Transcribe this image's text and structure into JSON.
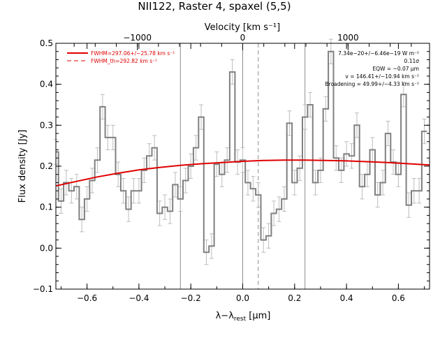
{
  "chart_data": {
    "type": "line",
    "title": "NII122, Raster 4, spaxel (5,5)",
    "xlabel": "λ−λrest [μm]",
    "xlabel_main": "λ−λ",
    "xlabel_sub": "rest",
    "xlabel_unit": " [μm]",
    "ylabel": "Flux density [Jy]",
    "top_axis_label": "Velocity [km s⁻¹]",
    "xlim": [
      -0.72,
      0.72
    ],
    "ylim": [
      -0.1,
      0.5
    ],
    "x_ticks": [
      -0.6,
      -0.4,
      -0.2,
      0.0,
      0.2,
      0.4,
      0.6
    ],
    "x_tick_labels": [
      "−0.6",
      "−0.4",
      "−0.2",
      "0.0",
      "0.2",
      "0.4",
      "0.6"
    ],
    "y_ticks": [
      -0.1,
      0.0,
      0.1,
      0.2,
      0.3,
      0.4,
      0.5
    ],
    "y_tick_labels": [
      "−0.1",
      "0.0",
      "0.1",
      "0.2",
      "0.3",
      "0.4",
      "0.5"
    ],
    "top_ticks_velocity": [
      -1000,
      0,
      1000
    ],
    "top_tick_labels": [
      "−1000",
      "0",
      "1000"
    ],
    "top_axis_micron_per_kms": 0.000406,
    "vertical_lines": [
      {
        "x": -0.24,
        "style": "solid"
      },
      {
        "x": 0.0,
        "style": "solid"
      },
      {
        "x": 0.06,
        "style": "dashed"
      },
      {
        "x": 0.24,
        "style": "solid"
      }
    ],
    "series": [
      {
        "style": "histogram",
        "color": "#808080",
        "x": [
          -0.72,
          -0.7,
          -0.68,
          -0.66,
          -0.64,
          -0.62,
          -0.6,
          -0.58,
          -0.56,
          -0.54,
          -0.52,
          -0.5,
          -0.48,
          -0.46,
          -0.44,
          -0.42,
          -0.4,
          -0.38,
          -0.36,
          -0.34,
          -0.32,
          -0.3,
          -0.28,
          -0.26,
          -0.24,
          -0.22,
          -0.2,
          -0.18,
          -0.16,
          -0.14,
          -0.12,
          -0.1,
          -0.08,
          -0.06,
          -0.04,
          -0.02,
          0.0,
          0.02,
          0.04,
          0.06,
          0.08,
          0.1,
          0.12,
          0.14,
          0.16,
          0.18,
          0.2,
          0.22,
          0.24,
          0.26,
          0.28,
          0.3,
          0.32,
          0.34,
          0.36,
          0.38,
          0.4,
          0.42,
          0.44,
          0.46,
          0.48,
          0.5,
          0.52,
          0.54,
          0.56,
          0.58,
          0.6,
          0.62,
          0.64,
          0.66,
          0.68,
          0.7
        ],
        "y": [
          0.235,
          0.115,
          0.16,
          0.14,
          0.15,
          0.07,
          0.12,
          0.165,
          0.215,
          0.345,
          0.27,
          0.27,
          0.18,
          0.14,
          0.095,
          0.14,
          0.14,
          0.19,
          0.225,
          0.245,
          0.085,
          0.1,
          0.09,
          0.155,
          0.12,
          0.165,
          0.2,
          0.245,
          0.32,
          -0.01,
          0.005,
          0.205,
          0.18,
          0.215,
          0.43,
          0.21,
          0.215,
          0.16,
          0.145,
          0.13,
          0.02,
          0.03,
          0.085,
          0.095,
          0.12,
          0.305,
          0.16,
          0.195,
          0.32,
          0.35,
          0.16,
          0.19,
          0.34,
          0.48,
          0.22,
          0.19,
          0.23,
          0.225,
          0.3,
          0.15,
          0.18,
          0.24,
          0.13,
          0.16,
          0.28,
          0.21,
          0.18,
          0.375,
          0.105,
          0.14,
          0.14,
          0.285
        ],
        "err": [
          0.03,
          0.03,
          0.03,
          0.03,
          0.03,
          0.03,
          0.03,
          0.03,
          0.03,
          0.03,
          0.03,
          0.03,
          0.03,
          0.03,
          0.03,
          0.03,
          0.03,
          0.03,
          0.03,
          0.03,
          0.03,
          0.03,
          0.03,
          0.03,
          0.03,
          0.03,
          0.03,
          0.03,
          0.03,
          0.03,
          0.03,
          0.03,
          0.03,
          0.03,
          0.03,
          0.03,
          0.03,
          0.03,
          0.03,
          0.03,
          0.03,
          0.03,
          0.03,
          0.03,
          0.03,
          0.03,
          0.03,
          0.03,
          0.03,
          0.03,
          0.03,
          0.03,
          0.03,
          0.03,
          0.03,
          0.03,
          0.03,
          0.03,
          0.03,
          0.03,
          0.03,
          0.03,
          0.03,
          0.03,
          0.03,
          0.03,
          0.03,
          0.03,
          0.03,
          0.03,
          0.03,
          0.03
        ]
      },
      {
        "style": "curve",
        "color": "#e00000",
        "x": [
          -0.72,
          -0.64,
          -0.56,
          -0.48,
          -0.4,
          -0.32,
          -0.24,
          -0.16,
          -0.08,
          0.0,
          0.08,
          0.16,
          0.24,
          0.32,
          0.4,
          0.48,
          0.56,
          0.64,
          0.72
        ],
        "y": [
          0.152,
          0.163,
          0.174,
          0.183,
          0.191,
          0.197,
          0.202,
          0.206,
          0.209,
          0.212,
          0.214,
          0.215,
          0.215,
          0.214,
          0.213,
          0.211,
          0.209,
          0.206,
          0.203
        ]
      }
    ],
    "legend": [
      {
        "label": "FWHM=297.06+/−25.78 km s⁻¹",
        "line": "solid",
        "color": "#e00000"
      },
      {
        "label": "FWHM_th=292.82 km s⁻¹",
        "line": "dashed",
        "color": "#e00000"
      }
    ],
    "annotations": [
      "7.34e−20+/−6.46e−19 W m⁻²",
      "0.11σ",
      "EQW = −0.07 μm",
      "v = 146.41+/−10.94 km s⁻¹",
      "Broadening = 49.99+/−4.33 km s⁻¹"
    ],
    "legend_placement": "top-left",
    "annotation_placement": "top-right",
    "grid": false
  }
}
